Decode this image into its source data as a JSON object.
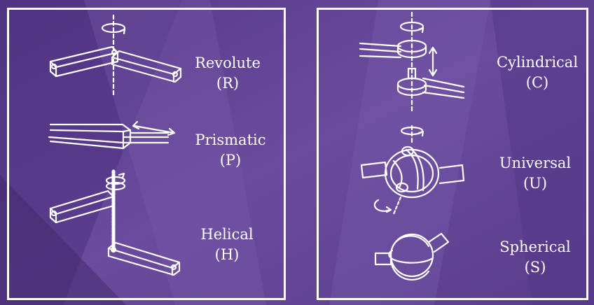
{
  "colors": {
    "background_dark": "#4a2f78",
    "background_light": "#7d5fae",
    "stroke": "#ffffff"
  },
  "joints": [
    {
      "name": "Revolute",
      "symbol": "(R)",
      "icon": "revolute-joint-icon"
    },
    {
      "name": "Prismatic",
      "symbol": "(P)",
      "icon": "prismatic-joint-icon"
    },
    {
      "name": "Helical",
      "symbol": "(H)",
      "icon": "helical-joint-icon"
    },
    {
      "name": "Cylindrical",
      "symbol": "(C)",
      "icon": "cylindrical-joint-icon"
    },
    {
      "name": "Universal",
      "symbol": "(U)",
      "icon": "universal-joint-icon"
    },
    {
      "name": "Spherical",
      "symbol": "(S)",
      "icon": "spherical-joint-icon"
    }
  ]
}
